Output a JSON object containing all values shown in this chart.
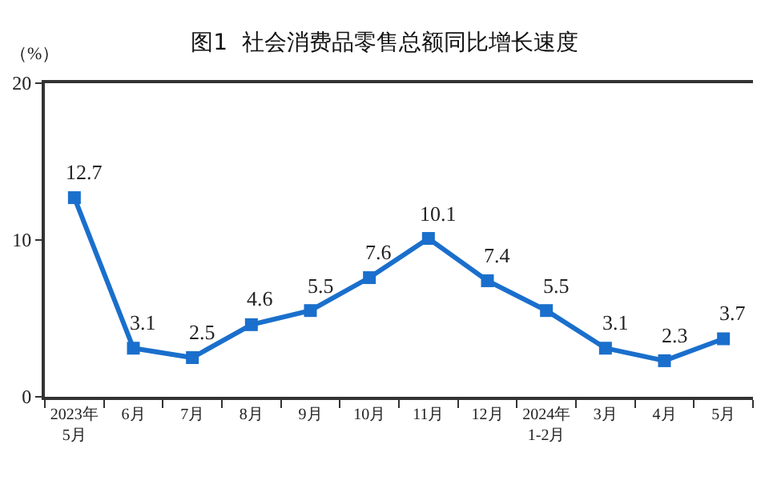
{
  "chart_data": {
    "type": "line",
    "title": "图1  社会消费品零售总额同比增长速度",
    "ylabel": "（%）",
    "categories": [
      "2023年\n5月",
      "6月",
      "7月",
      "8月",
      "9月",
      "10月",
      "11月",
      "12月",
      "2024年\n1-2月",
      "3月",
      "4月",
      "5月"
    ],
    "series": [
      {
        "color": "#1a6fcc",
        "values": [
          12.7,
          3.1,
          2.5,
          4.6,
          5.5,
          7.6,
          10.1,
          7.4,
          5.5,
          3.1,
          2.3,
          3.7
        ]
      }
    ],
    "ylim": [
      0,
      20
    ],
    "yticks": [
      0,
      10,
      20
    ],
    "grid": false,
    "marker": "square",
    "line_style": "solid",
    "data_labels": true
  }
}
